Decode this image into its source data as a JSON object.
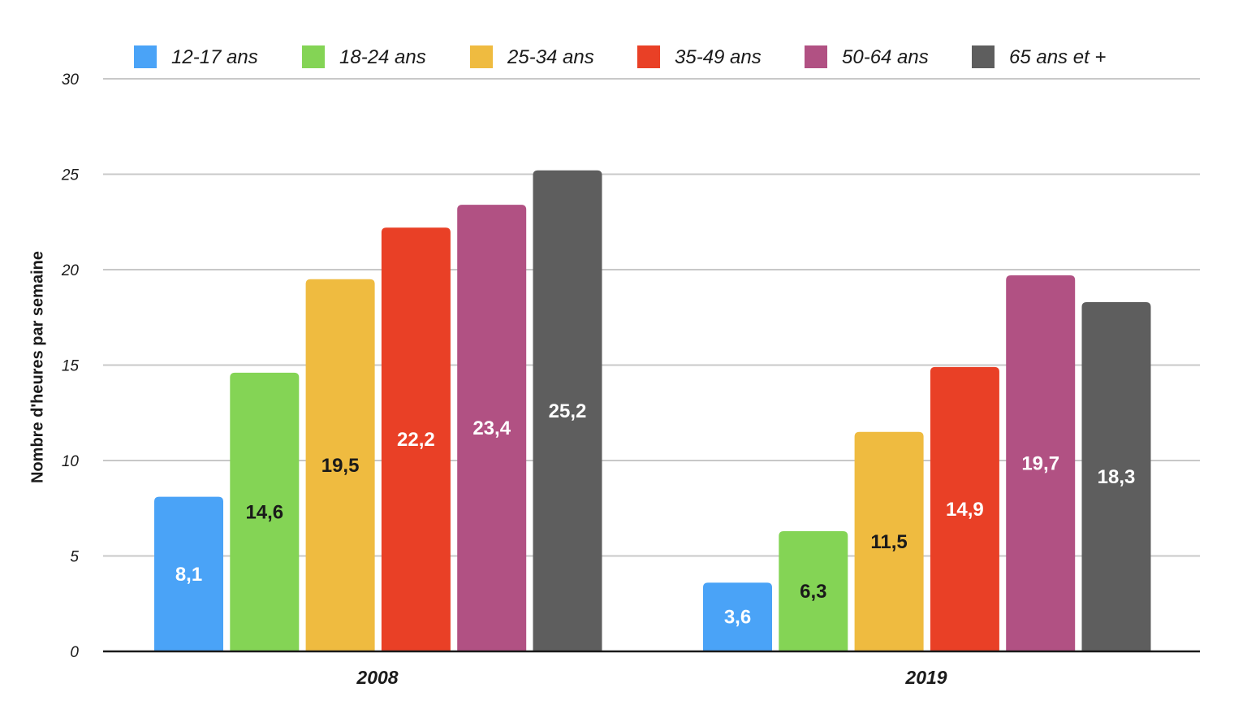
{
  "chart_data": {
    "type": "bar",
    "categories": [
      "2008",
      "2019"
    ],
    "series": [
      {
        "name": "12-17 ans",
        "color": "#4aa3f7",
        "label_color": "#ffffff",
        "values": [
          8.1,
          3.6
        ],
        "labels": [
          "8,1",
          "3,6"
        ]
      },
      {
        "name": "18-24 ans",
        "color": "#84d455",
        "label_color": "#1a1a1a",
        "values": [
          14.6,
          6.3
        ],
        "labels": [
          "14,6",
          "6,3"
        ]
      },
      {
        "name": "25-34 ans",
        "color": "#efbb40",
        "label_color": "#1a1a1a",
        "values": [
          19.5,
          11.5
        ],
        "labels": [
          "19,5",
          "11,5"
        ]
      },
      {
        "name": "35-49 ans",
        "color": "#e94026",
        "label_color": "#ffffff",
        "values": [
          22.2,
          14.9
        ],
        "labels": [
          "22,2",
          "14,9"
        ]
      },
      {
        "name": "50-64 ans",
        "color": "#b15183",
        "label_color": "#ffffff",
        "values": [
          23.4,
          19.7
        ],
        "labels": [
          "23,4",
          "19,7"
        ]
      },
      {
        "name": "65 ans et +",
        "color": "#5e5e5e",
        "label_color": "#ffffff",
        "values": [
          25.2,
          18.3
        ],
        "labels": [
          "25,2",
          "18,3"
        ]
      }
    ],
    "xlabel": "",
    "ylabel": "Nombre d'heures par semaine",
    "ylim": [
      0,
      30
    ],
    "yticks": [
      0,
      5,
      10,
      15,
      20,
      25,
      30
    ],
    "grid": true,
    "legend_position": "top"
  }
}
